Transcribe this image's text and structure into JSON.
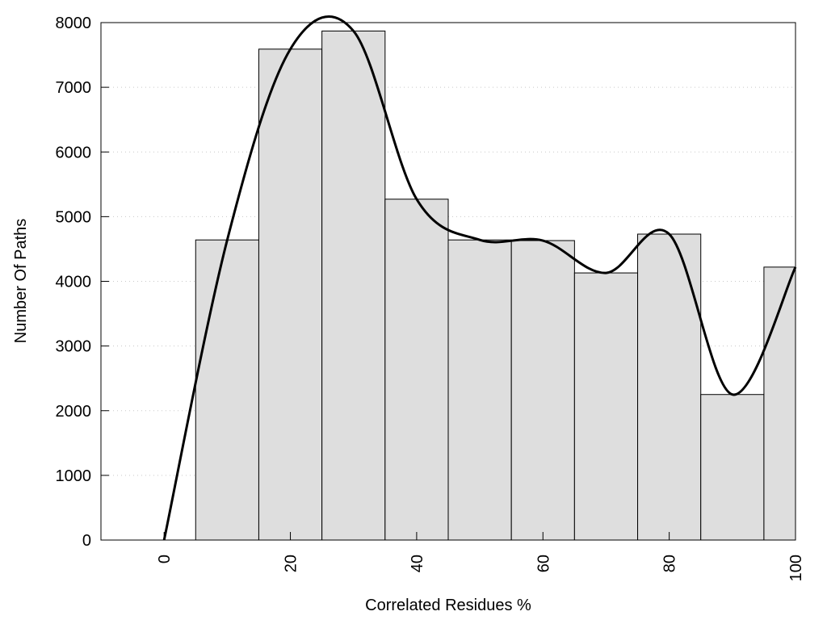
{
  "chart_data": {
    "type": "bar",
    "title": "",
    "xlabel": "Correlated Residues %",
    "ylabel": "Number Of Paths",
    "xlim": [
      -10,
      100
    ],
    "ylim": [
      0,
      8000
    ],
    "bar_width": 10,
    "x_ticks": [
      0,
      20,
      40,
      60,
      80,
      100
    ],
    "y_ticks": [
      0,
      1000,
      2000,
      3000,
      4000,
      5000,
      6000,
      7000,
      8000
    ],
    "grid": "horizontal dotted",
    "bar_color": "#dedede",
    "bars": {
      "x": [
        10,
        20,
        30,
        40,
        50,
        60,
        70,
        80,
        90,
        100
      ],
      "values": [
        4640,
        7590,
        7870,
        5270,
        4640,
        4630,
        4130,
        4730,
        2250,
        4220
      ]
    },
    "curve": {
      "type": "smooth line",
      "color": "#000000",
      "x": [
        0,
        10,
        20,
        30,
        40,
        50,
        60,
        70,
        80,
        90,
        100
      ],
      "values": [
        0,
        4640,
        7590,
        7870,
        5270,
        4640,
        4630,
        4130,
        4730,
        2250,
        4220
      ]
    }
  }
}
